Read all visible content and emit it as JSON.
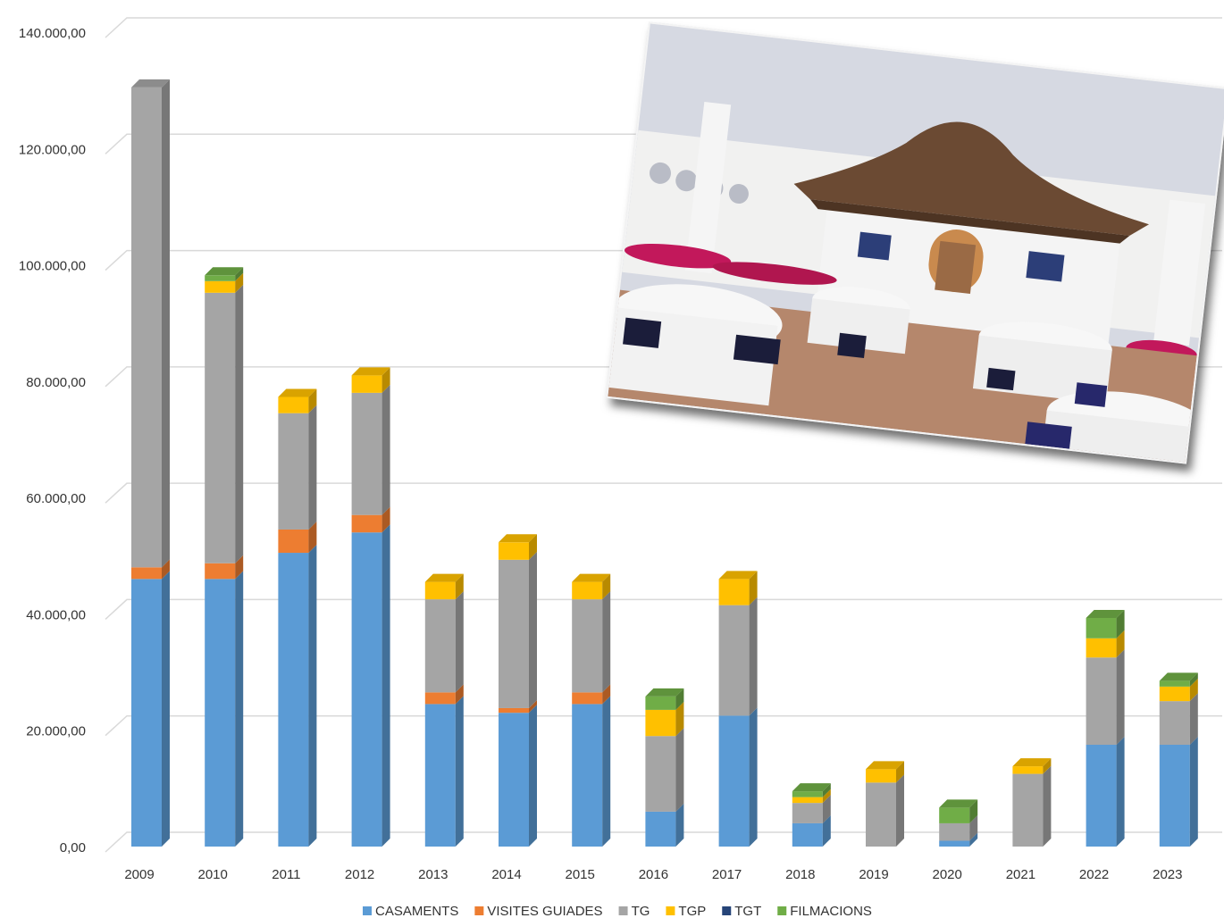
{
  "chart_data": {
    "type": "bar",
    "stacked": true,
    "three_d": true,
    "categories": [
      "2009",
      "2010",
      "2011",
      "2012",
      "2013",
      "2014",
      "2015",
      "2016",
      "2017",
      "2018",
      "2019",
      "2020",
      "2021",
      "2022",
      "2023"
    ],
    "series": [
      {
        "name": "CASAMENTS",
        "color": "#5b9bd5",
        "values": [
          46000,
          46000,
          50500,
          54000,
          24500,
          23000,
          24500,
          6000,
          22500,
          4000,
          0,
          1000,
          0,
          17500,
          17500
        ]
      },
      {
        "name": "VISITES GUIADES",
        "color": "#ed7d31",
        "values": [
          2000,
          2700,
          4000,
          3000,
          2000,
          800,
          2000,
          0,
          0,
          0,
          0,
          0,
          0,
          0,
          0
        ]
      },
      {
        "name": "TG",
        "color": "#a5a5a5",
        "values": [
          82500,
          46500,
          20000,
          21000,
          16000,
          25500,
          16000,
          13000,
          19000,
          3500,
          11000,
          3000,
          12500,
          15000,
          7500
        ]
      },
      {
        "name": "TGP",
        "color": "#ffc000",
        "values": [
          0,
          2000,
          2800,
          3000,
          3000,
          3000,
          3000,
          4500,
          4500,
          1000,
          2300,
          0,
          1300,
          3300,
          2500
        ]
      },
      {
        "name": "TGT",
        "color": "#264478",
        "values": [
          0,
          0,
          0,
          0,
          0,
          0,
          0,
          0,
          0,
          0,
          0,
          0,
          0,
          0,
          0
        ]
      },
      {
        "name": "FILMACIONS",
        "color": "#70ad47",
        "values": [
          0,
          1000,
          0,
          0,
          0,
          0,
          0,
          2300,
          0,
          1000,
          0,
          2700,
          0,
          3500,
          1000
        ]
      }
    ],
    "yticks": [
      "140.000,00",
      "120.000,00",
      "100.000,00",
      "80.000,00",
      "60.000,00",
      "40.000,00",
      "20.000,00",
      "0,00"
    ],
    "ylim": [
      0,
      140000
    ],
    "grid": true,
    "legend_position": "bottom"
  },
  "photo": {
    "subject": "rooftop terrace set for a wedding banquet",
    "colors": {
      "sky": "#d8dbe3",
      "wall": "#f2f2f2",
      "roof": "#6b4a33",
      "floor": "#b88a6f",
      "flowers": "#c2185b",
      "chair_bow": "#1b1d3a"
    }
  }
}
